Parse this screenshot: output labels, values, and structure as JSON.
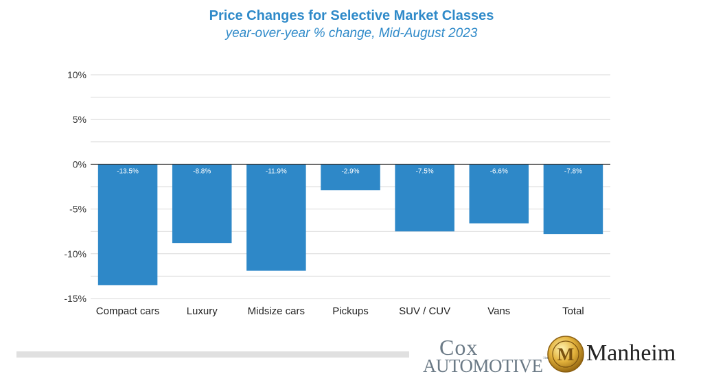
{
  "chart_data": {
    "type": "bar",
    "title": "Price Changes for Selective Market Classes",
    "subtitle": "year-over-year % change, Mid-August 2023",
    "categories": [
      "Compact cars",
      "Luxury",
      "Midsize cars",
      "Pickups",
      "SUV / CUV",
      "Vans",
      "Total"
    ],
    "values": [
      -13.5,
      -8.8,
      -11.9,
      -2.9,
      -7.5,
      -6.6,
      -7.8
    ],
    "data_labels": [
      "-13.5%",
      "-8.8%",
      "-11.9%",
      "-2.9%",
      "-7.5%",
      "-6.6%",
      "-7.8%"
    ],
    "yticks": [
      10,
      5,
      0,
      -5,
      -10,
      -15
    ],
    "ytick_labels": [
      "10%",
      "5%",
      "0%",
      "-5%",
      "-10%",
      "-15%"
    ],
    "ylim": [
      -15,
      10
    ],
    "grid": true,
    "bar_color": "#2e88c8"
  },
  "logos": {
    "cox_big": "Cox",
    "cox_small": "Automotive",
    "cox_tm": "™",
    "manheim": "Manheim",
    "manheim_badge": "M"
  }
}
